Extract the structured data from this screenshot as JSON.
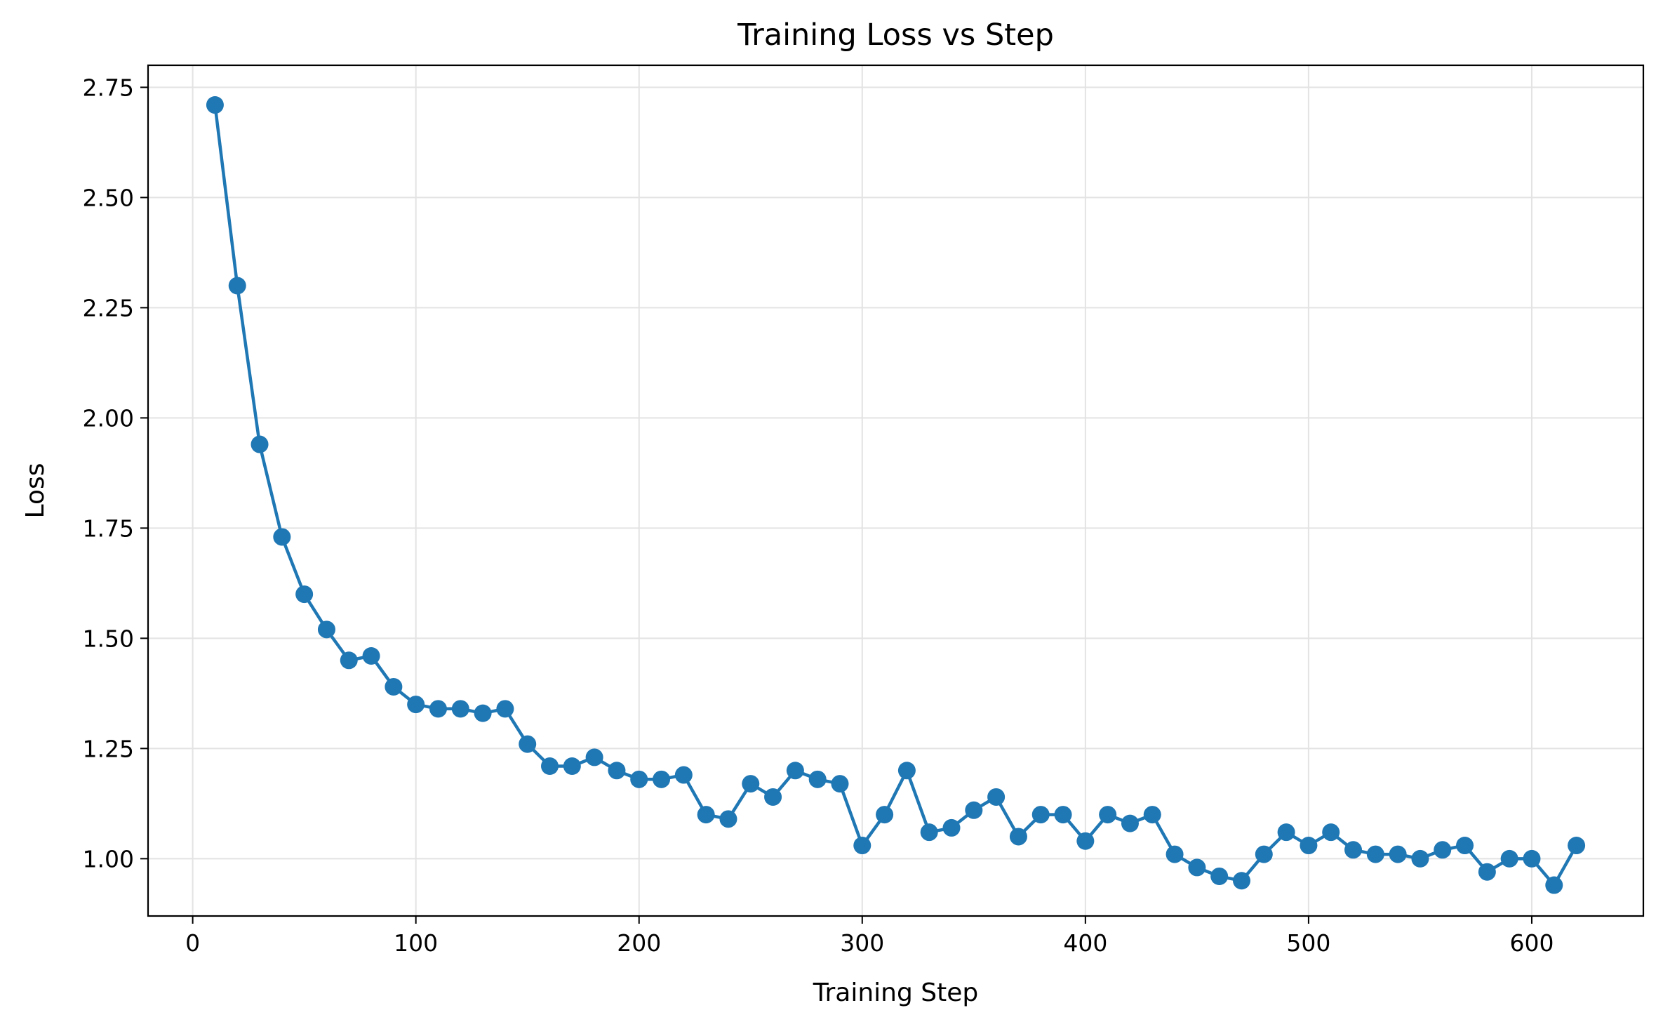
{
  "chart_data": {
    "type": "line",
    "title": "Training Loss vs Step",
    "xlabel": "Training Step",
    "ylabel": "Loss",
    "xlim": [
      -20,
      650
    ],
    "ylim": [
      0.87,
      2.8
    ],
    "xticks": [
      0,
      100,
      200,
      300,
      400,
      500,
      600
    ],
    "yticks": [
      1.0,
      1.25,
      1.5,
      1.75,
      2.0,
      2.25,
      2.5,
      2.75
    ],
    "xtick_labels": [
      "0",
      "100",
      "200",
      "300",
      "400",
      "500",
      "600"
    ],
    "ytick_labels": [
      "1.00",
      "1.25",
      "1.50",
      "1.75",
      "2.00",
      "2.25",
      "2.50",
      "2.75"
    ],
    "grid": true,
    "color": "#1f77b4",
    "marker": "circle",
    "x": [
      10,
      20,
      30,
      40,
      50,
      60,
      70,
      80,
      90,
      100,
      110,
      120,
      130,
      140,
      150,
      160,
      170,
      180,
      190,
      200,
      210,
      220,
      230,
      240,
      250,
      260,
      270,
      280,
      290,
      300,
      310,
      320,
      330,
      340,
      350,
      360,
      370,
      380,
      390,
      400,
      410,
      420,
      430,
      440,
      450,
      460,
      470,
      480,
      490,
      500,
      510,
      520,
      530,
      540,
      550,
      560,
      570,
      580,
      590,
      600,
      610,
      620
    ],
    "y": [
      2.71,
      2.3,
      1.94,
      1.73,
      1.6,
      1.52,
      1.45,
      1.46,
      1.39,
      1.35,
      1.34,
      1.34,
      1.33,
      1.34,
      1.26,
      1.21,
      1.21,
      1.23,
      1.2,
      1.18,
      1.18,
      1.19,
      1.1,
      1.09,
      1.17,
      1.14,
      1.2,
      1.18,
      1.17,
      1.03,
      1.1,
      1.2,
      1.06,
      1.07,
      1.11,
      1.14,
      1.05,
      1.1,
      1.1,
      1.04,
      1.1,
      1.08,
      1.1,
      1.01,
      0.98,
      0.96,
      0.95,
      1.01,
      1.06,
      1.03,
      1.06,
      1.02,
      1.01,
      1.01,
      1.0,
      1.02,
      1.03,
      0.97,
      1.0,
      1.0,
      0.94,
      1.03
    ]
  }
}
